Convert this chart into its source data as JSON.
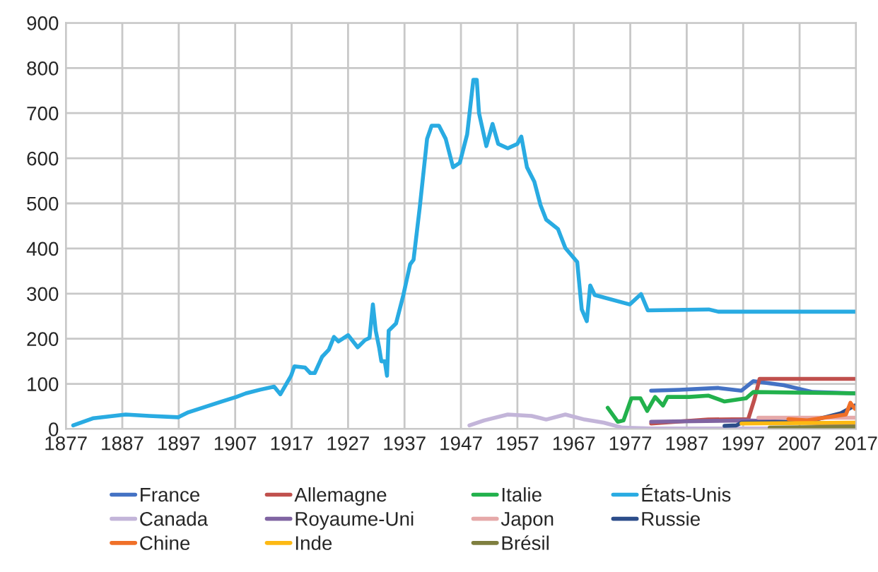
{
  "chart_data": {
    "type": "line",
    "xlim": [
      1877,
      2017
    ],
    "xticks": [
      1877,
      1887,
      1897,
      1907,
      1917,
      1927,
      1937,
      1947,
      1957,
      1967,
      1977,
      1987,
      1997,
      2007,
      2017
    ],
    "ylim": [
      0,
      900
    ],
    "yticks": [
      0,
      100,
      200,
      300,
      400,
      500,
      600,
      700,
      800,
      900
    ],
    "grid": true,
    "legend": "bottom",
    "marker": "none",
    "line_style": "solid",
    "series": [
      {
        "name": "France",
        "color": "#4472c4",
        "x": [
          1980.7,
          1985.7,
          1992.5,
          1996.7,
          1998.8,
          2004.2,
          2009.3,
          2016.8
        ],
        "values": [
          85,
          87,
          91,
          85,
          106,
          97,
          82,
          79
        ]
      },
      {
        "name": "Allemagne",
        "color": "#c0504d",
        "x": [
          1980.7,
          1990.8,
          1997.9,
          1999,
          1999.9,
          2016.8
        ],
        "values": [
          12,
          21,
          22,
          66,
          111,
          111
        ]
      },
      {
        "name": "Italie",
        "color": "#22b14c",
        "x": [
          1973,
          1974.8,
          1975.8,
          1977.2,
          1978.8,
          1980,
          1981.4,
          1982.8,
          1983.6,
          1987.4,
          1990.8,
          1993.7,
          1997.5,
          1998.8,
          2016.8
        ],
        "values": [
          47,
          16,
          19,
          68,
          68,
          40,
          71,
          52,
          71,
          71,
          74,
          61,
          68,
          82,
          79
        ]
      },
      {
        "name": "États-Unis",
        "color": "#29abe2",
        "x": [
          1878.3,
          1881.9,
          1887.6,
          1891.8,
          1896.9,
          1898.7,
          1904.6,
          1907.2,
          1908.9,
          1911.4,
          1913.9,
          1915,
          1916.9,
          1917.5,
          1919.4,
          1920.3,
          1921.1,
          1922.4,
          1923.6,
          1924.5,
          1925.3,
          1927,
          1928.7,
          1930,
          1930.8,
          1931.4,
          1931.9,
          1932.5,
          1932.9,
          1933.5,
          1933.9,
          1934.2,
          1935.5,
          1936.8,
          1938,
          1938.6,
          1939.7,
          1941,
          1941.8,
          1943.1,
          1944.3,
          1945.6,
          1946.8,
          1948.1,
          1949.2,
          1949.8,
          1950.2,
          1951.5,
          1952.6,
          1953.6,
          1955.3,
          1957,
          1957.7,
          1958.7,
          1960,
          1961.1,
          1962.1,
          1964.2,
          1965.5,
          1967.6,
          1968.4,
          1969.3,
          1969.9,
          1970.7,
          1976.9,
          1978.9,
          1980.1,
          1990.9,
          1992.6,
          2017
        ],
        "values": [
          8,
          24,
          32,
          29,
          26,
          37,
          61,
          71,
          79,
          87,
          94,
          77,
          118,
          139,
          136,
          124,
          124,
          160,
          176,
          204,
          194,
          208,
          181,
          197,
          202,
          276,
          218,
          181,
          150,
          150,
          118,
          218,
          234,
          297,
          365,
          375,
          491,
          643,
          672,
          672,
          643,
          580,
          590,
          653,
          774,
          774,
          700,
          627,
          676,
          632,
          622,
          632,
          648,
          580,
          548,
          496,
          464,
          443,
          401,
          370,
          265,
          239,
          318,
          297,
          276,
          299,
          263,
          265,
          260,
          260
        ]
      },
      {
        "name": "Canada",
        "color": "#c3b5d9",
        "x": [
          1948.5,
          1951.1,
          1955.3,
          1959.5,
          1962.1,
          1965.5,
          1968.9,
          1972.3,
          1975.6,
          1980.7,
          2017
        ],
        "values": [
          8,
          19,
          32,
          29,
          21,
          32,
          21,
          14,
          3,
          1,
          1
        ]
      },
      {
        "name": "Royaume-Uni",
        "color": "#8064a2",
        "x": [
          1980.7,
          1997.5,
          2016.8
        ],
        "values": [
          16,
          19,
          10
        ]
      },
      {
        "name": "Japon",
        "color": "#e6a9a9",
        "x": [
          1999.7,
          2016.8
        ],
        "values": [
          25,
          25
        ]
      },
      {
        "name": "Russie",
        "color": "#2c4d8a",
        "x": [
          1993.7,
          1995.8,
          1996.7,
          2005,
          2009.3,
          2014.3,
          2016.8
        ],
        "values": [
          7,
          8,
          14,
          16,
          19,
          35,
          52
        ]
      },
      {
        "name": "Chine",
        "color": "#f07028",
        "x": [
          2005,
          2008.4,
          2011.8,
          2015.2,
          2016,
          2016.8
        ],
        "values": [
          22,
          19,
          26,
          32,
          58,
          45
        ]
      },
      {
        "name": "Inde",
        "color": "#fdb913",
        "x": [
          1996.7,
          2016.8
        ],
        "values": [
          12,
          14
        ]
      },
      {
        "name": "Brésil",
        "color": "#7f7f3f",
        "x": [
          2001.7,
          2016.8
        ],
        "values": [
          3,
          5
        ]
      }
    ]
  }
}
